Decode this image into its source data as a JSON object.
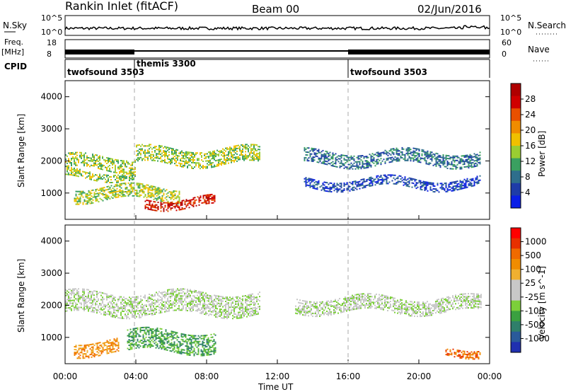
{
  "header": {
    "title": "Rankin Inlet (fitACF)",
    "beam": "Beam 00",
    "date": "02/Jun/2016"
  },
  "status_panels": {
    "nsky_label": "N.Sky",
    "nsky_ticks": [
      "10^5",
      "10^0"
    ],
    "nsearch_label": "N.Search",
    "freq_label": "Freq.",
    "freq_unit": "[MHz]",
    "freq_ticks": [
      "18",
      "8"
    ],
    "nave_label": "Nave",
    "nave_ticks": [
      "60",
      "0"
    ],
    "cpid_label": "CPID",
    "cpid_segments": [
      {
        "label": "twofsound 3503",
        "start_hour": 0,
        "end_hour": 4
      },
      {
        "label": "themis 3300",
        "start_hour": 4,
        "end_hour": 16
      },
      {
        "label": "twofsound 3503",
        "start_hour": 16,
        "end_hour": 24
      }
    ]
  },
  "chart_data": [
    {
      "type": "heatmap",
      "name": "power-panel",
      "ylabel": "Slant Range [km]",
      "yticks": [
        "1000",
        "2000",
        "3000",
        "4000"
      ],
      "ylim": [
        180,
        4500
      ],
      "xlim": [
        0,
        24
      ],
      "colorbar": {
        "label": "Power [dB]",
        "ticks": [
          "4",
          "8",
          "12",
          "16",
          "20",
          "24",
          "28"
        ],
        "colors": [
          "#0a1ee6",
          "#1e3ca8",
          "#2e6e8c",
          "#3aa060",
          "#9acd32",
          "#f0c000",
          "#f08c00",
          "#e85000",
          "#d00000",
          "#b00000"
        ]
      },
      "echo_bands": [
        {
          "t0": 0.0,
          "t1": 4.0,
          "r0": 1750,
          "r1": 2150,
          "level": 4
        },
        {
          "t0": 0.0,
          "t1": 4.0,
          "r0": 1450,
          "r1": 1700,
          "level": 4
        },
        {
          "t0": 4.0,
          "t1": 11.0,
          "r0": 1900,
          "r1": 2400,
          "level": 4
        },
        {
          "t0": 0.5,
          "t1": 6.5,
          "r0": 800,
          "r1": 1200,
          "level": 4
        },
        {
          "t0": 4.5,
          "t1": 8.5,
          "r0": 550,
          "r1": 850,
          "level": 8
        },
        {
          "t0": 13.5,
          "t1": 23.5,
          "r0": 1900,
          "r1": 2300,
          "level": 2
        },
        {
          "t0": 13.5,
          "t1": 23.5,
          "r0": 1150,
          "r1": 1450,
          "level": 1
        }
      ]
    },
    {
      "type": "heatmap",
      "name": "velocity-panel",
      "xlabel": "Time UT",
      "ylabel": "Slant Range [km]",
      "xticks": [
        "00:00",
        "04:00",
        "08:00",
        "12:00",
        "16:00",
        "20:00",
        "00:00"
      ],
      "yticks": [
        "1000",
        "2000",
        "3000",
        "4000"
      ],
      "ylim": [
        180,
        4500
      ],
      "xlim": [
        0,
        24
      ],
      "colorbar": {
        "label": "Velocity [m s^-1]",
        "ticks": [
          "1000",
          "500",
          "100",
          "25",
          "-25",
          "-100",
          "-500",
          "-1000"
        ],
        "colors": [
          "#2030b0",
          "#2a5a9a",
          "#2f7f6a",
          "#3aa040",
          "#7ccf3a",
          "#c8c8c8",
          "#c8c8c8",
          "#f0b030",
          "#f08c00",
          "#f06a00",
          "#e83000",
          "#ff0000"
        ]
      },
      "echo_bands": [
        {
          "t0": 0.0,
          "t1": 11.0,
          "r0": 1700,
          "r1": 2400,
          "level": 5
        },
        {
          "t0": 13.0,
          "t1": 23.5,
          "r0": 1800,
          "r1": 2250,
          "level": 5
        },
        {
          "t0": 3.5,
          "t1": 8.5,
          "r0": 550,
          "r1": 1200,
          "level": 3
        },
        {
          "t0": 0.5,
          "t1": 3.0,
          "r0": 500,
          "r1": 900,
          "level": 8
        },
        {
          "t0": 21.5,
          "t1": 23.5,
          "r0": 450,
          "r1": 700,
          "level": 9
        }
      ]
    }
  ]
}
